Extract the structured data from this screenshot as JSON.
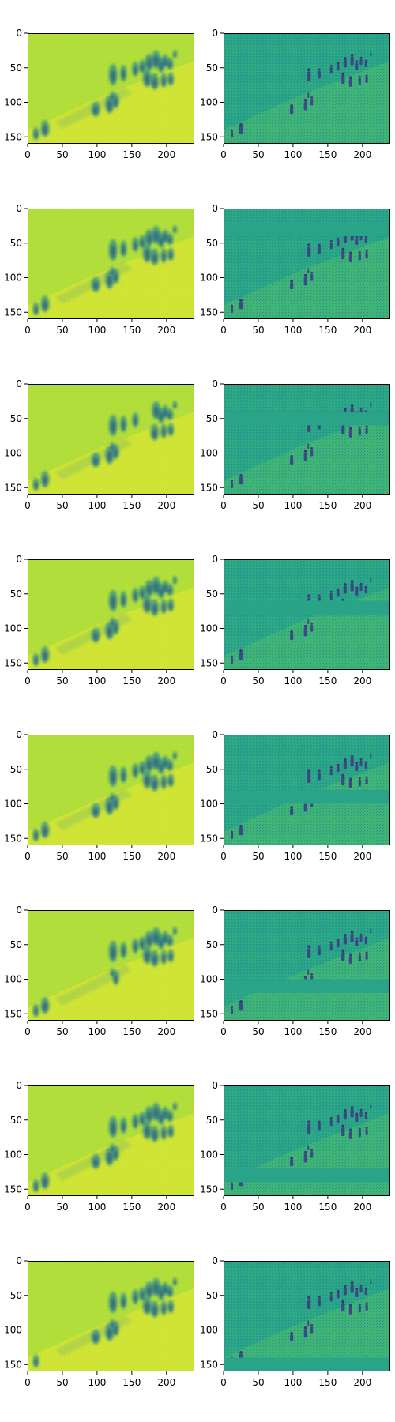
{
  "chart_data": {
    "type": "heatmap",
    "layout": {
      "rows": 8,
      "cols": 2
    },
    "image_width": 240,
    "image_height": 160,
    "xticks": [
      0,
      50,
      100,
      150,
      200
    ],
    "yticks": [
      0,
      50,
      100,
      150
    ],
    "xlim": [
      0,
      240
    ],
    "ylim": [
      160,
      0
    ],
    "grid": false,
    "colormap": "viridis",
    "colors": {
      "left_background": "#b2de3b",
      "left_light": "#d9e534",
      "left_blob": "#2f8d8b",
      "left_blob_dark": "#30407d",
      "right_background": "#29a489",
      "right_light": "#5bc463",
      "right_figure": "#3a3f86",
      "right_figure_dark": "#452c72"
    },
    "panels": [
      {
        "row": 1,
        "col": 1,
        "kind": "reconstruction"
      },
      {
        "row": 1,
        "col": 2,
        "kind": "residual",
        "band": []
      },
      {
        "row": 2,
        "col": 1,
        "kind": "reconstruction"
      },
      {
        "row": 2,
        "col": 2,
        "kind": "residual",
        "band": [
          20,
          40
        ]
      },
      {
        "row": 3,
        "col": 1,
        "kind": "reconstruction"
      },
      {
        "row": 3,
        "col": 2,
        "kind": "residual",
        "band": [
          40,
          60
        ]
      },
      {
        "row": 4,
        "col": 1,
        "kind": "reconstruction"
      },
      {
        "row": 4,
        "col": 2,
        "kind": "residual",
        "band": [
          60,
          80
        ]
      },
      {
        "row": 5,
        "col": 1,
        "kind": "reconstruction"
      },
      {
        "row": 5,
        "col": 2,
        "kind": "residual",
        "band": [
          80,
          100
        ]
      },
      {
        "row": 6,
        "col": 1,
        "kind": "reconstruction"
      },
      {
        "row": 6,
        "col": 2,
        "kind": "residual",
        "band": [
          100,
          120
        ]
      },
      {
        "row": 7,
        "col": 1,
        "kind": "reconstruction"
      },
      {
        "row": 7,
        "col": 2,
        "kind": "residual",
        "band": [
          120,
          140
        ]
      },
      {
        "row": 8,
        "col": 1,
        "kind": "reconstruction"
      },
      {
        "row": 8,
        "col": 2,
        "kind": "residual",
        "band": [
          140,
          160
        ]
      }
    ]
  }
}
